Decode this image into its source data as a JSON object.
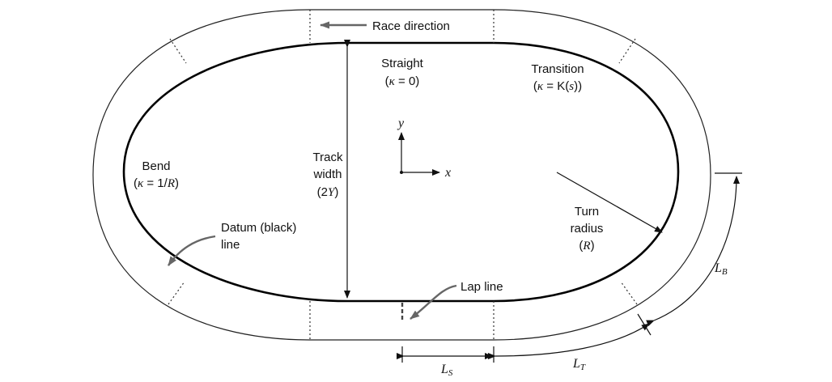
{
  "labels": {
    "race_direction": "Race direction",
    "straight": "Straight",
    "straight_pre": "(",
    "straight_kappa": "κ",
    "straight_post": " = 0)",
    "transition": "Transition",
    "transition_pre": "(",
    "transition_kappa": "κ",
    "transition_mid": " = K(",
    "transition_s": "s",
    "transition_post": "))",
    "bend": "Bend",
    "bend_pre": "(",
    "bend_kappa": "κ",
    "bend_mid": " = 1/",
    "bend_R": "R",
    "bend_post": ")",
    "track_width_1": "Track",
    "track_width_2": "width",
    "track_width_pre": "(2",
    "track_width_Y": "Y",
    "track_width_post": ")",
    "turn_radius_1": "Turn",
    "turn_radius_2": "radius",
    "turn_radius_pre": "(",
    "turn_radius_R": "R",
    "turn_radius_post": ")",
    "datum_1": "Datum (black)",
    "datum_2": "line",
    "lap_line": "Lap line",
    "axis_x": "x",
    "axis_y": "y",
    "ls_main": "L",
    "ls_sub": "S",
    "lt_main": "L",
    "lt_sub": "T",
    "lb_main": "L",
    "lb_sub": "B"
  }
}
